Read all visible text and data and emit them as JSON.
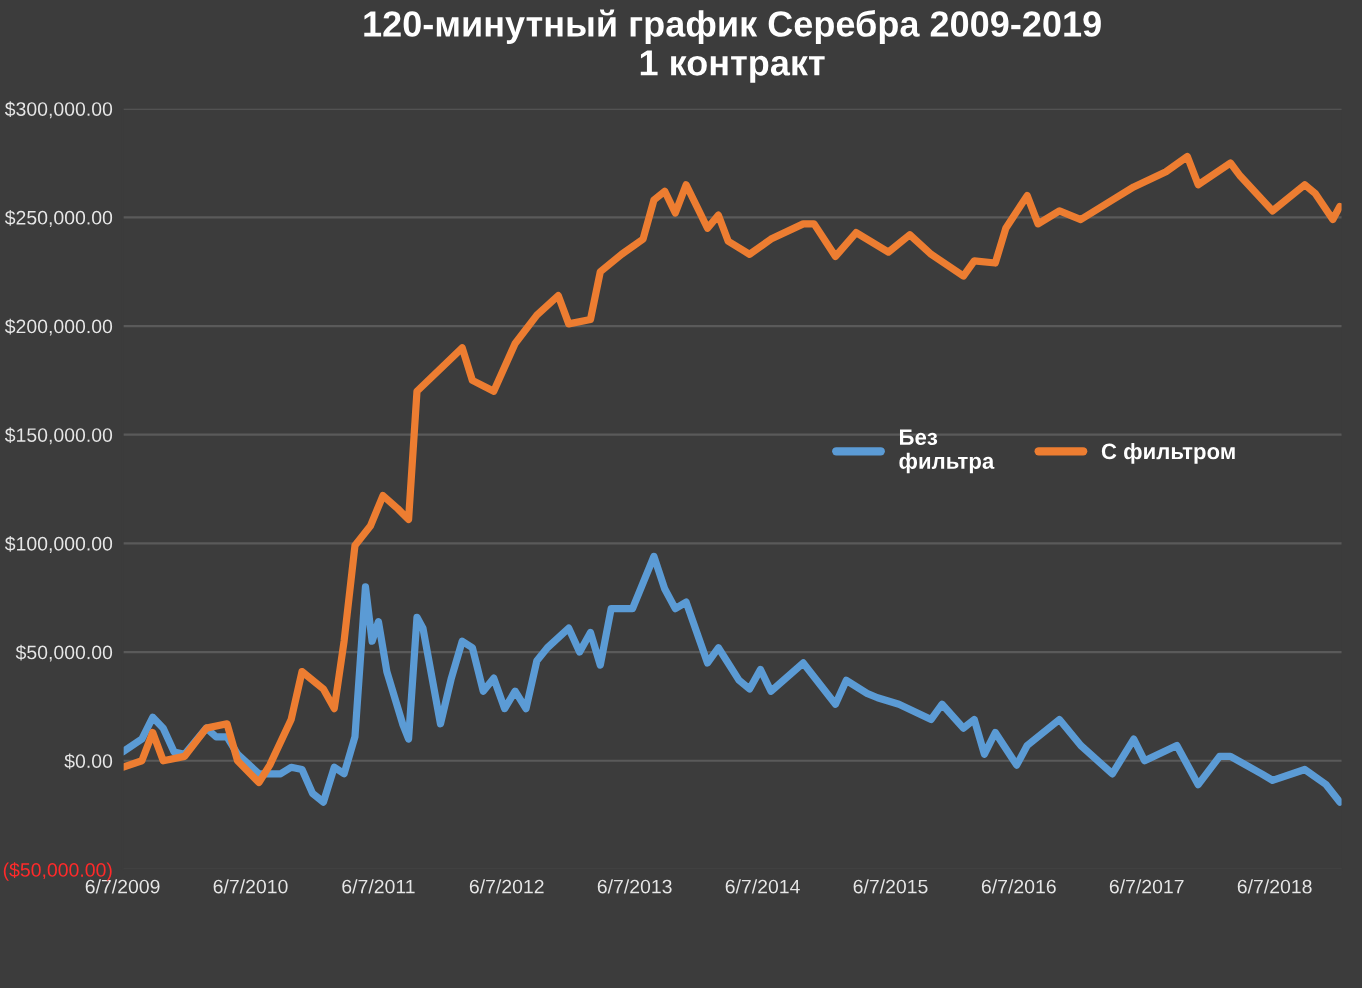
{
  "chart_data": {
    "type": "line",
    "title": "120-минутный график Серебра 2009-2019\n1 контракт",
    "series": [
      {
        "name": "Без\nфильтра",
        "color": "#5b9bd5",
        "x": [
          "2009-06-07",
          "2009-08",
          "2009-09",
          "2009-10",
          "2009-11",
          "2009-12",
          "2010-02",
          "2010-03",
          "2010-04",
          "2010-05",
          "2010-07",
          "2010-09",
          "2010-10",
          "2010-11",
          "2010-12",
          "2011-01",
          "2011-02",
          "2011-03",
          "2011-04",
          "2011-05-01",
          "2011-05-20",
          "2011-06-07",
          "2011-07",
          "2011-08-15",
          "2011-09-01",
          "2011-09-25",
          "2011-10-12",
          "2011-12",
          "2012-01",
          "2012-02",
          "2012-03",
          "2012-04",
          "2012-05",
          "2012-06",
          "2012-07",
          "2012-08",
          "2012-09",
          "2012-10",
          "2012-12",
          "2013-01",
          "2013-02",
          "2013-03",
          "2013-04",
          "2013-06",
          "2013-08",
          "2013-09",
          "2013-10",
          "2013-11",
          "2014-01",
          "2014-02",
          "2014-04",
          "2014-05",
          "2014-06",
          "2014-07",
          "2014-10",
          "2015-01",
          "2015-02",
          "2015-04",
          "2015-05",
          "2015-07",
          "2015-10",
          "2015-11",
          "2016-01",
          "2016-02",
          "2016-03",
          "2016-04",
          "2016-06",
          "2016-07",
          "2016-10",
          "2016-12",
          "2017-03",
          "2017-05",
          "2017-06",
          "2017-09",
          "2017-11",
          "2018-01",
          "2018-02",
          "2018-05",
          "2018-06",
          "2018-09",
          "2018-11-01",
          "2018-12-10"
        ],
        "values": [
          4000,
          10000,
          20000,
          15000,
          4000,
          3000,
          15000,
          11000,
          11000,
          3000,
          -6000,
          -6000,
          -3000,
          -4000,
          -15000,
          -19000,
          -3000,
          -6000,
          11000,
          80000,
          55000,
          64000,
          41000,
          17000,
          10000,
          66000,
          61000,
          17000,
          38000,
          55000,
          52000,
          32000,
          38000,
          24000,
          32000,
          24000,
          46000,
          52000,
          61000,
          50000,
          59000,
          44000,
          70000,
          70000,
          94000,
          79000,
          70000,
          73000,
          45000,
          52000,
          37000,
          33000,
          42000,
          32000,
          45000,
          26000,
          37000,
          31000,
          29000,
          26000,
          19000,
          26000,
          15000,
          19000,
          3000,
          13000,
          -2000,
          7000,
          19000,
          7000,
          -6000,
          10000,
          0,
          7000,
          -11000,
          2000,
          2000,
          -6000,
          -9000,
          -4000,
          -11000,
          -19000
        ]
      },
      {
        "name": "С фильтром",
        "color": "#ed7d31",
        "x": [
          "2009-06-07",
          "2009-08",
          "2009-09",
          "2009-10",
          "2009-12",
          "2010-02",
          "2010-04",
          "2010-05",
          "2010-07",
          "2010-08",
          "2010-10",
          "2010-11",
          "2011-01",
          "2011-02",
          "2011-03",
          "2011-04",
          "2011-05-15",
          "2011-06-20",
          "2011-08",
          "2011-09-01",
          "2011-09-25",
          "2012-02",
          "2012-03",
          "2012-05",
          "2012-07",
          "2012-09",
          "2012-11",
          "2012-12",
          "2013-02",
          "2013-03",
          "2013-05",
          "2013-07",
          "2013-08",
          "2013-09",
          "2013-10",
          "2013-11",
          "2014-01",
          "2014-02",
          "2014-03",
          "2014-05",
          "2014-07",
          "2014-10",
          "2014-11",
          "2015-01",
          "2015-03",
          "2015-06",
          "2015-08",
          "2015-10",
          "2016-01",
          "2016-02",
          "2016-04",
          "2016-05",
          "2016-07",
          "2016-08",
          "2016-10",
          "2016-12",
          "2017-03",
          "2017-05",
          "2017-08",
          "2017-10",
          "2017-11",
          "2018-02",
          "2018-03",
          "2018-06",
          "2018-09",
          "2018-10",
          "2018-11-20",
          "2018-12-10"
        ],
        "values": [
          -3000,
          0,
          13000,
          0,
          2000,
          15000,
          17000,
          0,
          -10000,
          -2000,
          19000,
          41000,
          33000,
          24000,
          55000,
          99000,
          108000,
          122000,
          116000,
          111000,
          170000,
          190000,
          175000,
          170000,
          192000,
          205000,
          214000,
          201000,
          203000,
          225000,
          233000,
          240000,
          258000,
          262000,
          252000,
          265000,
          245000,
          251000,
          239000,
          233000,
          240000,
          247000,
          247000,
          232000,
          243000,
          234000,
          242000,
          233000,
          223000,
          230000,
          229000,
          245000,
          260000,
          247000,
          253000,
          249000,
          258000,
          264000,
          271000,
          278000,
          265000,
          275000,
          269000,
          253000,
          265000,
          261000,
          249000,
          255000
        ]
      }
    ],
    "xlim": [
      "2009-06-07",
      "2018-12-15"
    ],
    "xticks": [
      {
        "value": "2009-06-07",
        "label": "6/7/2009"
      },
      {
        "value": "2010-06-07",
        "label": "6/7/2010"
      },
      {
        "value": "2011-06-07",
        "label": "6/7/2011"
      },
      {
        "value": "2012-06-07",
        "label": "6/7/2012"
      },
      {
        "value": "2013-06-07",
        "label": "6/7/2013"
      },
      {
        "value": "2014-06-07",
        "label": "6/7/2014"
      },
      {
        "value": "2015-06-07",
        "label": "6/7/2015"
      },
      {
        "value": "2016-06-07",
        "label": "6/7/2016"
      },
      {
        "value": "2017-06-07",
        "label": "6/7/2017"
      },
      {
        "value": "2018-06-07",
        "label": "6/7/2018"
      }
    ],
    "ylim": [
      -50000,
      300000
    ],
    "yticks": [
      {
        "value": -50000,
        "label": "($50,000.00)"
      },
      {
        "value": 0,
        "label": "$0.00"
      },
      {
        "value": 50000,
        "label": "$50,000.00"
      },
      {
        "value": 100000,
        "label": "$100,000.00"
      },
      {
        "value": 150000,
        "label": "$150,000.00"
      },
      {
        "value": 200000,
        "label": "$200,000.00"
      },
      {
        "value": 250000,
        "label": "$250,000.00"
      },
      {
        "value": 300000,
        "label": "$300,000.00"
      }
    ],
    "grid": "y",
    "legend": "right",
    "marker": "none",
    "line_style": "solid"
  }
}
